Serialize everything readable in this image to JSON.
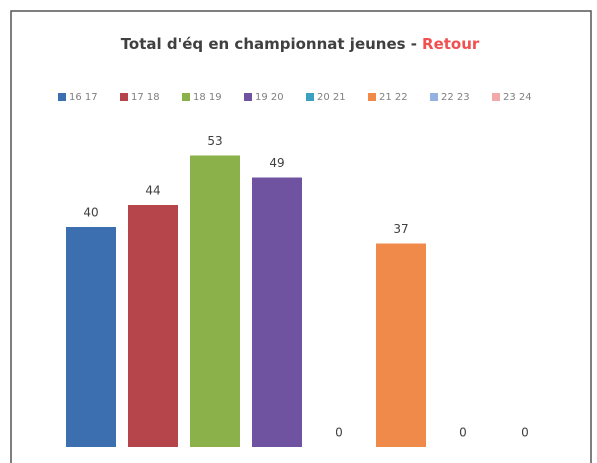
{
  "chart_data": {
    "type": "bar",
    "title": "Total d'éq en championnat jeunes -",
    "title_highlight": "Retour",
    "series": [
      {
        "name": "16 17",
        "color": "#3b6fb0",
        "values": [
          40
        ]
      },
      {
        "name": "17 18",
        "color": "#b6444b",
        "values": [
          44
        ]
      },
      {
        "name": "18 19",
        "color": "#8ab14a",
        "values": [
          53
        ]
      },
      {
        "name": "19 20",
        "color": "#6f53a1",
        "values": [
          49
        ]
      },
      {
        "name": "20 21",
        "color": "#3ba1c1",
        "values": [
          0
        ]
      },
      {
        "name": "21 22",
        "color": "#f08a4b",
        "values": [
          37
        ]
      },
      {
        "name": "22 23",
        "color": "#93b2e0",
        "values": [
          0
        ]
      },
      {
        "name": "23 24",
        "color": "#f1a9a9",
        "values": [
          0
        ]
      }
    ],
    "ylim": [
      0,
      60
    ]
  }
}
